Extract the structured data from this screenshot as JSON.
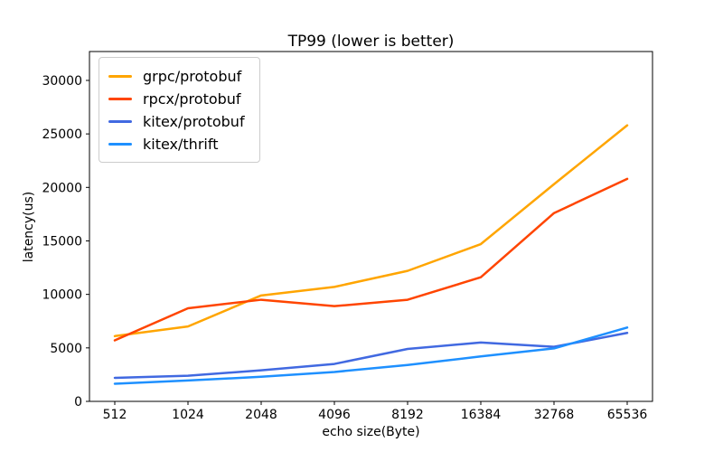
{
  "figure": {
    "background": "#ffffff",
    "spine_color": "#000000"
  },
  "chart_data": {
    "type": "line",
    "title": "TP99 (lower is better)",
    "xlabel": "echo size(Byte)",
    "ylabel": "latency(us)",
    "categories": [
      "512",
      "1024",
      "2048",
      "4096",
      "8192",
      "16384",
      "32768",
      "65536"
    ],
    "series": [
      {
        "name": "grpc/protobuf",
        "color": "#ffa500",
        "values": [
          6100,
          7000,
          9900,
          10700,
          12200,
          14700,
          20300,
          25800
        ]
      },
      {
        "name": "rpcx/protobuf",
        "color": "#ff4500",
        "values": [
          5700,
          8700,
          9500,
          8900,
          9500,
          11600,
          17600,
          20800
        ]
      },
      {
        "name": "kitex/protobuf",
        "color": "#4169e1",
        "values": [
          2200,
          2400,
          2900,
          3500,
          4900,
          5500,
          5100,
          6400
        ]
      },
      {
        "name": "kitex/thrift",
        "color": "#1e90ff",
        "values": [
          1650,
          1950,
          2300,
          2750,
          3400,
          4200,
          4950,
          6900
        ]
      }
    ],
    "yticks": [
      0,
      5000,
      10000,
      15000,
      20000,
      25000,
      30000
    ],
    "ylim": [
      0,
      32700
    ],
    "grid": false,
    "legend_position": "upper-left",
    "line_width": 2.5
  }
}
